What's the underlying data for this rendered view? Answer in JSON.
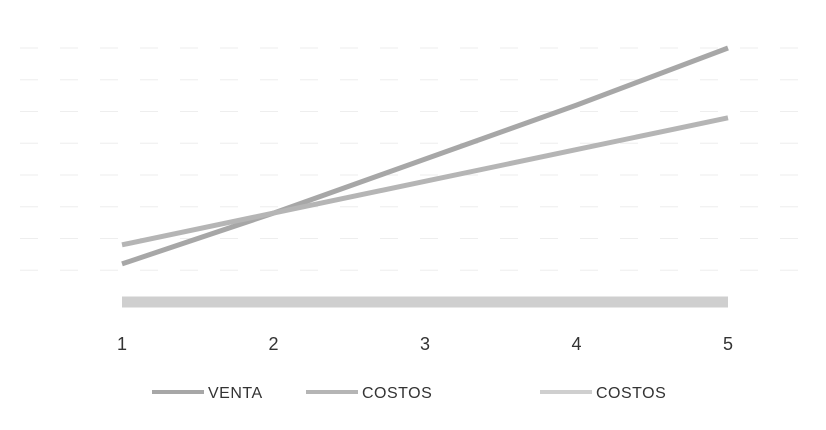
{
  "chart_data": {
    "type": "line",
    "x": [
      1,
      2,
      3,
      4,
      5
    ],
    "xlim": [
      1,
      5
    ],
    "ylim": [
      0,
      8
    ],
    "grid": true,
    "legend_position": "bottom",
    "series": [
      {
        "name": "VENTA",
        "values": [
          1.2,
          2.8,
          4.5,
          6.2,
          8.0
        ],
        "color": "#a7a7a7"
      },
      {
        "name": "COSTOS",
        "values": [
          1.8,
          2.8,
          3.8,
          4.8,
          5.8
        ],
        "color": "#b5b5b5"
      },
      {
        "name": "COSTOS",
        "values": [
          0,
          0,
          0,
          0,
          0
        ],
        "color": "#cfcfcf"
      }
    ],
    "tick_labels": [
      "1",
      "2",
      "3",
      "4",
      "5"
    ]
  }
}
